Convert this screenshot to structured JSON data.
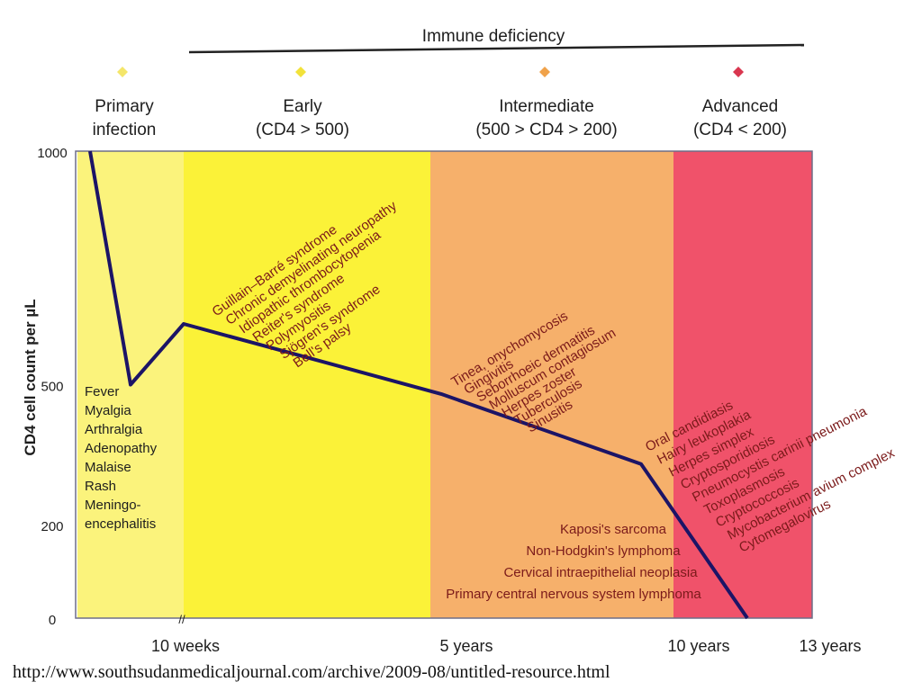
{
  "chart_data": {
    "type": "line",
    "header": "Immune deficiency",
    "ylabel": "CD4 cell count per µL",
    "ylim": [
      0,
      1000
    ],
    "y_ticks": [
      "1000",
      "500",
      "200",
      "0"
    ],
    "x_ticks": [
      "10 weeks",
      "5 years",
      "10 years",
      "13 years"
    ],
    "axis_break": "//",
    "stages": [
      {
        "name": "Primary\ninfection",
        "color": "#fbf37c",
        "marker": "#f4e66a"
      },
      {
        "name": "Early\n(CD4 > 500)",
        "color": "#fbf238",
        "marker": "#f2e23a"
      },
      {
        "name": "Intermediate\n(500 > CD4 > 200)",
        "color": "#f6b06b",
        "marker": "#f0a24a"
      },
      {
        "name": "Advanced\n(CD4 < 200)",
        "color": "#f0526a",
        "marker": "#d9364f"
      }
    ],
    "series": [
      {
        "x": [
          "start",
          "~4 weeks",
          "10 weeks",
          "~4.5 years",
          "9 years",
          "~11.5 years"
        ],
        "values": [
          1000,
          500,
          630,
          480,
          330,
          0
        ],
        "color": "#1c1466"
      }
    ],
    "annotations": {
      "primary": [
        "Fever",
        "Myalgia",
        "Arthralgia",
        "Adenopathy",
        "Malaise",
        "Rash",
        "Meningo-",
        "encephalitis"
      ],
      "early": [
        "Guillain–Barré syndrome",
        "Chronic demyelinating neuropathy",
        "Idiopathic thrombocytopenia",
        "Reiter's syndrome",
        "Polymyositis",
        "Sjögren's syndrome",
        "Bell's palsy"
      ],
      "intermediate": [
        "Tinea, onychomycosis",
        "Gingivitis",
        "Seborrhoeic dermatitis",
        "Molluscum contagiosum",
        "Herpes zoster",
        "Tuberculosis",
        "Sinusitis"
      ],
      "advanced": [
        "Oral candidiasis",
        "Hairy leukoplakia",
        "Herpes simplex",
        "Cryptosporidiosis",
        "Pneumocystis carinii pneumonia",
        "Toxoplasmosis",
        "Cryptococcosis",
        "Mycobacterium avium complex",
        "Cytomegalovirus"
      ],
      "malignancies": [
        "Kaposi's sarcoma",
        "Non-Hodgkin's lymphoma",
        "Cervical intraepithelial neoplasia",
        "Primary central nervous system lymphoma"
      ]
    }
  },
  "source_url": "http://www.southsudanmedicaljournal.com/archive/2009-08/untitled-resource.html"
}
